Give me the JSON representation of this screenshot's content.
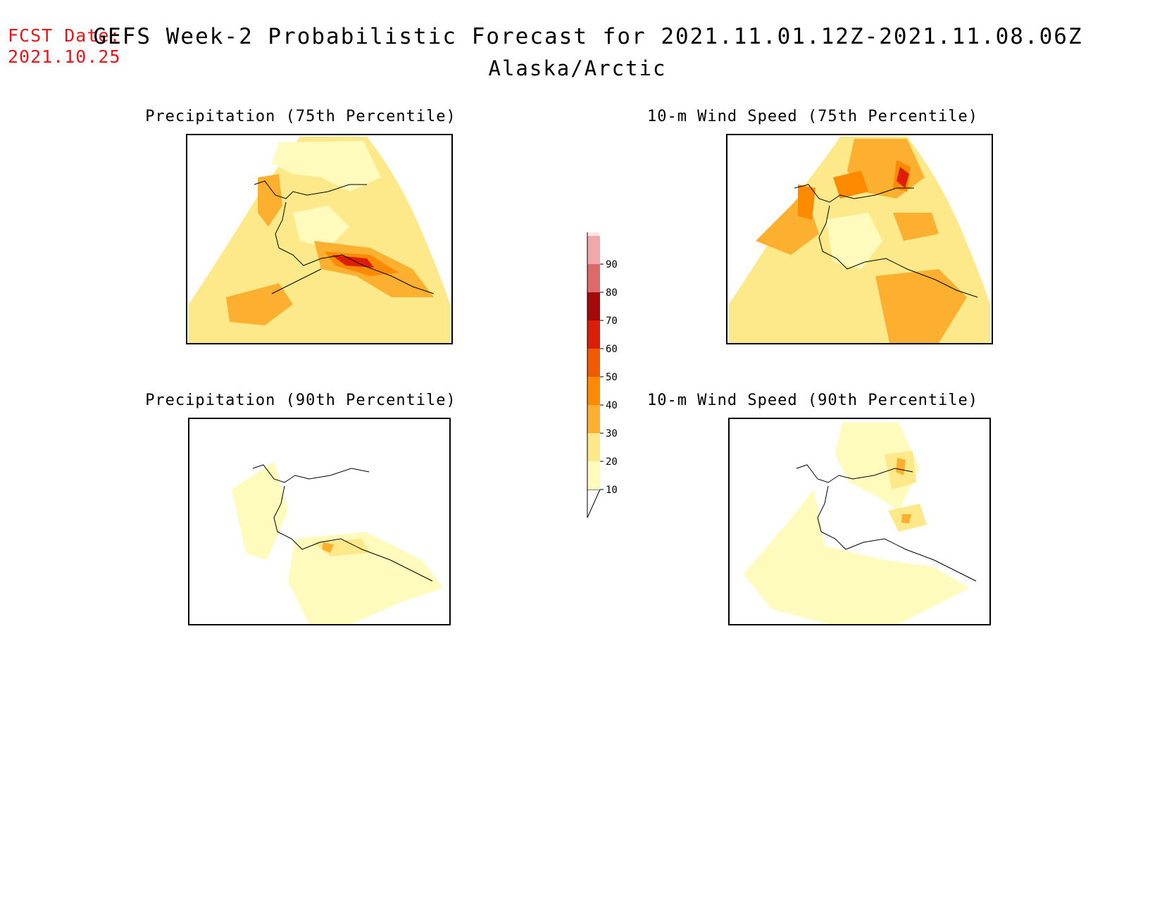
{
  "header": {
    "fcst_label": "FCST Date:",
    "fcst_date": "2021.10.25",
    "title": "GEFS Week-2 Probabilistic Forecast for 2021.11.01.12Z-2021.11.08.06Z",
    "subtitle": "Alaska/Arctic"
  },
  "panels": {
    "precip75": {
      "title": "Precipitation (75th Percentile)"
    },
    "wind75": {
      "title": "10-m Wind Speed (75th Percentile)"
    },
    "precip90": {
      "title": "Precipitation (90th Percentile)"
    },
    "wind90": {
      "title": "10-m Wind Speed (90th Percentile)"
    }
  },
  "legend": {
    "levels": [
      "10",
      "20",
      "30",
      "40",
      "50",
      "60",
      "70",
      "80",
      "90"
    ],
    "colors": {
      "c10": "#fffbbc",
      "c20": "#fde98a",
      "c30": "#fdb030",
      "c40": "#fd8a00",
      "c50": "#f05a00",
      "c60": "#dc1e08",
      "c70": "#a50a0a",
      "c80": "#dc6a6a",
      "c90": "#f0a8a8",
      "c100": "#fce4e4"
    }
  }
}
